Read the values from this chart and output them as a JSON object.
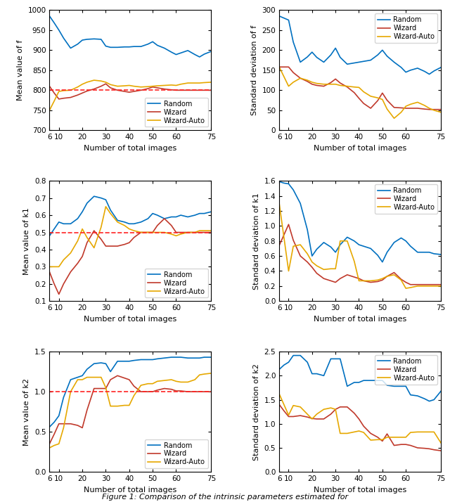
{
  "x": [
    6,
    8,
    10,
    12,
    15,
    18,
    20,
    22,
    25,
    28,
    30,
    32,
    35,
    38,
    40,
    42,
    45,
    48,
    50,
    52,
    55,
    58,
    60,
    62,
    65,
    68,
    70,
    72,
    75
  ],
  "mean_f_random": [
    985,
    968,
    950,
    930,
    905,
    915,
    925,
    927,
    928,
    927,
    910,
    907,
    907,
    908,
    908,
    909,
    909,
    915,
    921,
    912,
    905,
    895,
    889,
    893,
    899,
    889,
    883,
    890,
    897
  ],
  "mean_f_wizard": [
    810,
    793,
    778,
    780,
    782,
    788,
    793,
    798,
    803,
    810,
    816,
    806,
    800,
    797,
    795,
    797,
    800,
    804,
    808,
    806,
    803,
    801,
    800,
    800,
    800,
    800,
    800,
    800,
    800
  ],
  "mean_f_wizauto": [
    750,
    773,
    797,
    799,
    800,
    808,
    815,
    820,
    825,
    823,
    820,
    814,
    810,
    811,
    812,
    810,
    808,
    809,
    810,
    811,
    812,
    813,
    812,
    815,
    818,
    818,
    818,
    819,
    820
  ],
  "std_f_random": [
    285,
    280,
    275,
    220,
    170,
    183,
    195,
    182,
    170,
    188,
    205,
    182,
    165,
    168,
    170,
    172,
    175,
    188,
    200,
    185,
    170,
    157,
    145,
    150,
    155,
    147,
    140,
    148,
    157
  ],
  "std_f_wizard": [
    158,
    158,
    158,
    144,
    130,
    122,
    115,
    112,
    110,
    119,
    128,
    118,
    108,
    94,
    80,
    67,
    55,
    74,
    93,
    75,
    57,
    56,
    55,
    55,
    55,
    53,
    52,
    52,
    52
  ],
  "std_f_wizauto": [
    158,
    134,
    110,
    120,
    130,
    125,
    120,
    117,
    115,
    115,
    115,
    112,
    110,
    108,
    107,
    96,
    85,
    81,
    77,
    53,
    30,
    45,
    60,
    65,
    70,
    62,
    55,
    50,
    45
  ],
  "mean_k1_random": [
    0.48,
    0.52,
    0.56,
    0.55,
    0.55,
    0.58,
    0.62,
    0.67,
    0.71,
    0.7,
    0.69,
    0.63,
    0.57,
    0.56,
    0.55,
    0.55,
    0.56,
    0.58,
    0.61,
    0.6,
    0.58,
    0.59,
    0.59,
    0.6,
    0.59,
    0.6,
    0.61,
    0.61,
    0.62
  ],
  "mean_k1_wizard": [
    0.27,
    0.2,
    0.14,
    0.2,
    0.27,
    0.32,
    0.36,
    0.44,
    0.51,
    0.46,
    0.42,
    0.42,
    0.42,
    0.43,
    0.44,
    0.47,
    0.5,
    0.5,
    0.5,
    0.54,
    0.58,
    0.54,
    0.5,
    0.5,
    0.5,
    0.5,
    0.5,
    0.5,
    0.5
  ],
  "mean_k1_wizauto": [
    0.3,
    0.3,
    0.3,
    0.34,
    0.38,
    0.45,
    0.52,
    0.47,
    0.41,
    0.53,
    0.65,
    0.61,
    0.56,
    0.54,
    0.52,
    0.51,
    0.5,
    0.5,
    0.5,
    0.5,
    0.5,
    0.49,
    0.48,
    0.49,
    0.5,
    0.5,
    0.51,
    0.51,
    0.51
  ],
  "std_k1_random": [
    1.59,
    1.57,
    1.56,
    1.48,
    1.3,
    0.95,
    0.6,
    0.69,
    0.78,
    0.72,
    0.65,
    0.75,
    0.85,
    0.8,
    0.75,
    0.73,
    0.7,
    0.61,
    0.52,
    0.65,
    0.78,
    0.84,
    0.8,
    0.73,
    0.65,
    0.65,
    0.65,
    0.63,
    0.62
  ],
  "std_k1_wizard": [
    0.74,
    0.88,
    1.02,
    0.81,
    0.6,
    0.52,
    0.45,
    0.37,
    0.3,
    0.27,
    0.25,
    0.3,
    0.35,
    0.32,
    0.3,
    0.27,
    0.25,
    0.26,
    0.28,
    0.33,
    0.38,
    0.29,
    0.25,
    0.22,
    0.22,
    0.22,
    0.22,
    0.22,
    0.22
  ],
  "std_k1_wizauto": [
    1.3,
    0.85,
    0.4,
    0.73,
    0.75,
    0.63,
    0.52,
    0.47,
    0.42,
    0.43,
    0.43,
    0.8,
    0.8,
    0.53,
    0.27,
    0.27,
    0.27,
    0.28,
    0.3,
    0.33,
    0.35,
    0.28,
    0.17,
    0.18,
    0.2,
    0.2,
    0.2,
    0.2,
    0.2
  ],
  "mean_k2_random": [
    0.56,
    0.62,
    0.7,
    0.93,
    1.15,
    1.18,
    1.2,
    1.28,
    1.35,
    1.36,
    1.35,
    1.25,
    1.38,
    1.38,
    1.38,
    1.39,
    1.4,
    1.4,
    1.4,
    1.41,
    1.42,
    1.43,
    1.43,
    1.43,
    1.42,
    1.42,
    1.42,
    1.43,
    1.43
  ],
  "mean_k2_wizard": [
    0.35,
    0.47,
    0.6,
    0.6,
    0.6,
    0.58,
    0.55,
    0.77,
    1.04,
    1.04,
    1.04,
    1.15,
    1.2,
    1.17,
    1.15,
    1.07,
    1.0,
    1.0,
    1.0,
    1.02,
    1.04,
    1.03,
    1.01,
    1.01,
    1.0,
    1.0,
    1.0,
    1.0,
    1.0
  ],
  "mean_k2_wizauto": [
    0.3,
    0.33,
    0.35,
    0.55,
    1.0,
    1.15,
    1.15,
    1.18,
    1.18,
    1.18,
    1.05,
    0.82,
    0.82,
    0.83,
    0.83,
    0.95,
    1.08,
    1.1,
    1.1,
    1.13,
    1.14,
    1.15,
    1.13,
    1.12,
    1.12,
    1.15,
    1.21,
    1.22,
    1.23
  ],
  "std_k2_random": [
    2.13,
    2.22,
    2.28,
    2.42,
    2.42,
    2.28,
    2.04,
    2.04,
    2.0,
    2.35,
    2.35,
    2.35,
    1.78,
    1.86,
    1.86,
    1.9,
    1.9,
    1.9,
    1.9,
    1.8,
    1.78,
    1.78,
    1.78,
    1.6,
    1.58,
    1.52,
    1.47,
    1.5,
    1.68
  ],
  "std_k2_wizard": [
    1.4,
    1.27,
    1.15,
    1.15,
    1.17,
    1.14,
    1.11,
    1.1,
    1.1,
    1.2,
    1.3,
    1.35,
    1.35,
    1.22,
    1.1,
    0.95,
    0.8,
    0.72,
    0.64,
    0.79,
    0.55,
    0.57,
    0.57,
    0.55,
    0.5,
    0.49,
    0.48,
    0.46,
    0.44
  ],
  "std_k2_wizauto": [
    1.62,
    1.4,
    1.18,
    1.38,
    1.35,
    1.2,
    1.1,
    1.2,
    1.3,
    1.33,
    1.3,
    0.8,
    0.8,
    0.83,
    0.85,
    0.82,
    0.66,
    0.67,
    0.67,
    0.72,
    0.72,
    0.72,
    0.72,
    0.82,
    0.83,
    0.83,
    0.83,
    0.83,
    0.6
  ],
  "color_random": "#0070c0",
  "color_wizard": "#c0392b",
  "color_wizauto": "#e6a800",
  "color_dashed": "#ff2222",
  "xlabel": "Number of total images",
  "xticks": [
    6,
    10,
    20,
    30,
    40,
    50,
    60,
    75
  ],
  "ylim_mean_f": [
    700,
    1000
  ],
  "yticks_mean_f": [
    700,
    750,
    800,
    850,
    900,
    950,
    1000
  ],
  "ylim_std_f": [
    0,
    300
  ],
  "yticks_std_f": [
    0,
    50,
    100,
    150,
    200,
    250,
    300
  ],
  "ylim_mean_k1": [
    0.1,
    0.8
  ],
  "yticks_mean_k1": [
    0.1,
    0.2,
    0.3,
    0.4,
    0.5,
    0.6,
    0.7,
    0.8
  ],
  "ylim_std_k1": [
    0,
    1.6
  ],
  "yticks_std_k1": [
    0,
    0.2,
    0.4,
    0.6,
    0.8,
    1.0,
    1.2,
    1.4,
    1.6
  ],
  "ylim_mean_k2": [
    0,
    1.5
  ],
  "yticks_mean_k2": [
    0,
    0.5,
    1.0,
    1.5
  ],
  "ylim_std_k2": [
    0,
    2.5
  ],
  "yticks_std_k2": [
    0,
    0.5,
    1.0,
    1.5,
    2.0,
    2.5
  ],
  "dashed_f": 800,
  "dashed_k1": 0.5,
  "dashed_k2": 1.0,
  "caption": "Figure 1: Comparison of the intrinsic parameters estimated for"
}
